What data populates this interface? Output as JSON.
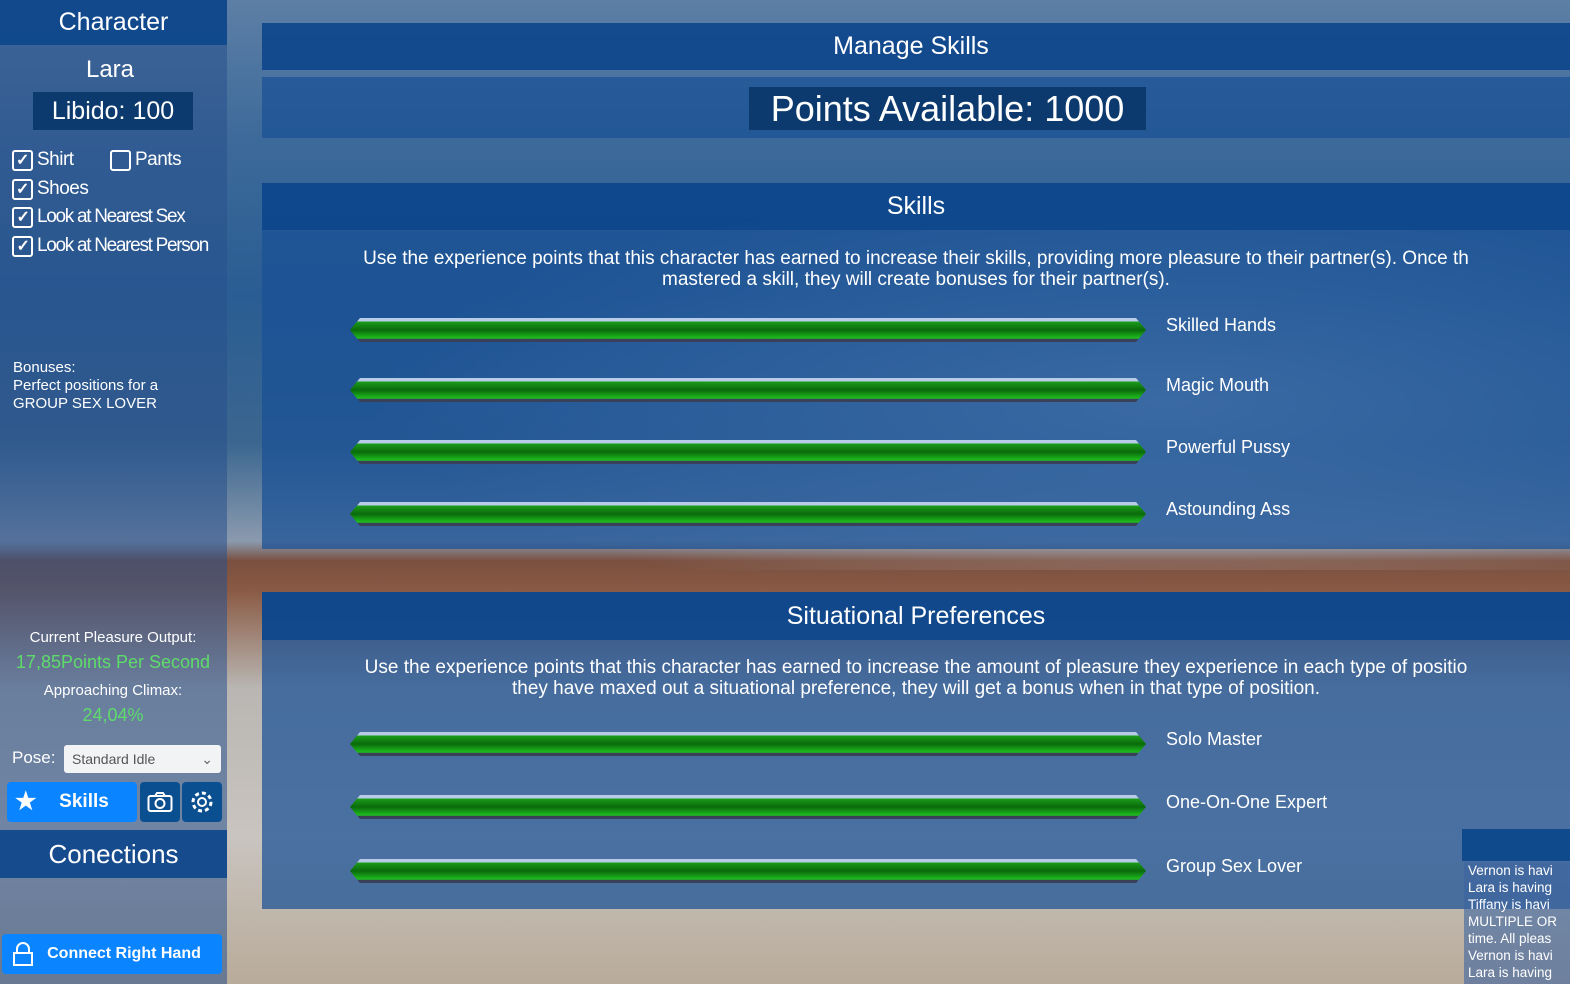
{
  "character": {
    "title": "Character",
    "name": "Lara",
    "libido": "Libido: 100",
    "checkboxes": [
      {
        "label": "Shirt",
        "checked": true
      },
      {
        "label": "Pants",
        "checked": false
      },
      {
        "label": "Shoes",
        "checked": true
      },
      {
        "label": "Look at Nearest Sex",
        "checked": true
      },
      {
        "label": "Look at Nearest Person",
        "checked": true
      }
    ],
    "bonuses_title": "Bonuses:",
    "bonuses_line1": "Perfect positions for a",
    "bonuses_line2": "GROUP SEX LOVER",
    "pleasure_label": "Current Pleasure Output:",
    "pleasure_value": "17,85Points Per Second",
    "climax_label": "Approaching Climax:",
    "climax_value": "24,04%",
    "pose_label": "Pose:",
    "pose_value": "Standard Idle",
    "skills_button": "Skills",
    "connections_title": "Conections",
    "connect_button": "Connect Right Hand"
  },
  "manage": {
    "title": "Manage Skills",
    "points": "Points Available: 1000"
  },
  "skills": {
    "title": "Skills",
    "desc1": "Use the experience points that this character has earned to increase their skills, providing more pleasure to their partner(s). Once th",
    "desc2": "mastered a skill, they will create bonuses for their partner(s).",
    "items": [
      {
        "label": "Skilled Hands",
        "level": 1
      },
      {
        "label": "Magic Mouth",
        "level": 1
      },
      {
        "label": "Powerful Pussy",
        "level": 1
      },
      {
        "label": "Astounding Ass",
        "level": 1
      }
    ]
  },
  "situational": {
    "title": "Situational Preferences",
    "desc1": "Use the experience points that this character has earned to increase the amount of pleasure they experience in each type of positio",
    "desc2": "they have maxed out a situational preference, they will get a bonus when in that type of position.",
    "items": [
      {
        "label": "Solo Master",
        "level": 1
      },
      {
        "label": "One-On-One Expert",
        "level": 1
      },
      {
        "label": "Group Sex Lover",
        "level": 1
      }
    ]
  },
  "log": {
    "lines": [
      "Vernon is havi",
      "Lara is having",
      "Tiffany is havi",
      "MULTIPLE OR",
      "time. All pleas",
      "Vernon is havi",
      "Lara is having"
    ]
  },
  "colors": {
    "accent": "#0a84ff",
    "green": "#5ddc6a",
    "panel": "#1e5696"
  }
}
